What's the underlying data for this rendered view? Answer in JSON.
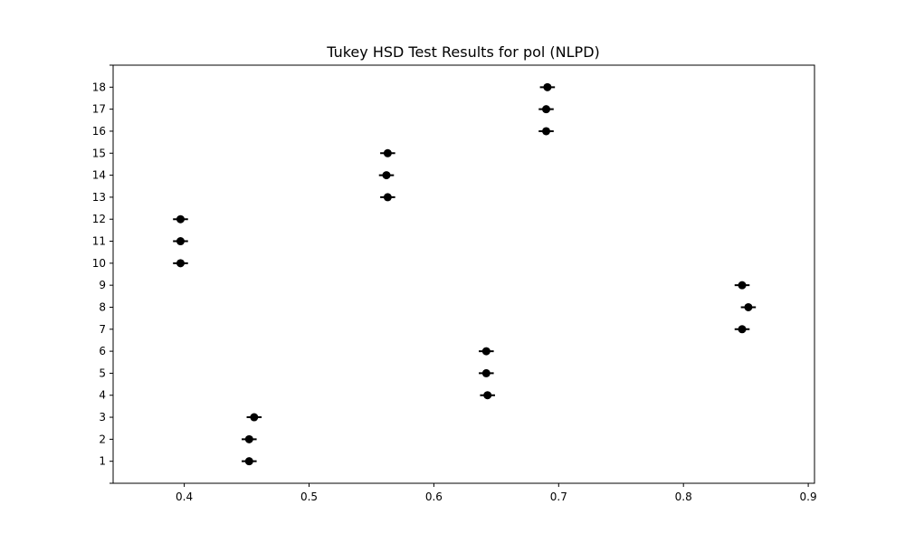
{
  "chart_data": {
    "type": "scatter",
    "title": "Tukey HSD Test Results for pol (NLPD)",
    "xlabel": "",
    "ylabel": "",
    "xlim": [
      0.343,
      0.905
    ],
    "ylim": [
      0,
      19
    ],
    "xticks": [
      0.4,
      0.5,
      0.6,
      0.7,
      0.8,
      0.9
    ],
    "xtick_labels": [
      "0.4",
      "0.5",
      "0.6",
      "0.7",
      "0.8",
      "0.9"
    ],
    "yticks": [
      1,
      2,
      3,
      4,
      5,
      6,
      7,
      8,
      9,
      10,
      11,
      12,
      13,
      14,
      15,
      16,
      17,
      18
    ],
    "ytick_labels": [
      "1",
      "2",
      "3",
      "4",
      "5",
      "6",
      "7",
      "8",
      "9",
      "10",
      "11",
      "12",
      "13",
      "14",
      "15",
      "16",
      "17",
      "18"
    ],
    "grid": false,
    "marker_color": "#000000",
    "points": [
      {
        "group": 1,
        "mean": 0.452,
        "lower": 0.446,
        "upper": 0.458
      },
      {
        "group": 2,
        "mean": 0.452,
        "lower": 0.446,
        "upper": 0.458
      },
      {
        "group": 3,
        "mean": 0.456,
        "lower": 0.45,
        "upper": 0.462
      },
      {
        "group": 4,
        "mean": 0.643,
        "lower": 0.637,
        "upper": 0.649
      },
      {
        "group": 5,
        "mean": 0.642,
        "lower": 0.636,
        "upper": 0.648
      },
      {
        "group": 6,
        "mean": 0.642,
        "lower": 0.636,
        "upper": 0.648
      },
      {
        "group": 7,
        "mean": 0.847,
        "lower": 0.841,
        "upper": 0.853
      },
      {
        "group": 8,
        "mean": 0.852,
        "lower": 0.846,
        "upper": 0.858
      },
      {
        "group": 9,
        "mean": 0.847,
        "lower": 0.841,
        "upper": 0.853
      },
      {
        "group": 10,
        "mean": 0.397,
        "lower": 0.391,
        "upper": 0.403
      },
      {
        "group": 11,
        "mean": 0.397,
        "lower": 0.391,
        "upper": 0.403
      },
      {
        "group": 12,
        "mean": 0.397,
        "lower": 0.391,
        "upper": 0.403
      },
      {
        "group": 13,
        "mean": 0.563,
        "lower": 0.557,
        "upper": 0.569
      },
      {
        "group": 14,
        "mean": 0.562,
        "lower": 0.556,
        "upper": 0.568
      },
      {
        "group": 15,
        "mean": 0.563,
        "lower": 0.557,
        "upper": 0.569
      },
      {
        "group": 16,
        "mean": 0.69,
        "lower": 0.684,
        "upper": 0.696
      },
      {
        "group": 17,
        "mean": 0.69,
        "lower": 0.684,
        "upper": 0.696
      },
      {
        "group": 18,
        "mean": 0.691,
        "lower": 0.685,
        "upper": 0.697
      }
    ]
  }
}
